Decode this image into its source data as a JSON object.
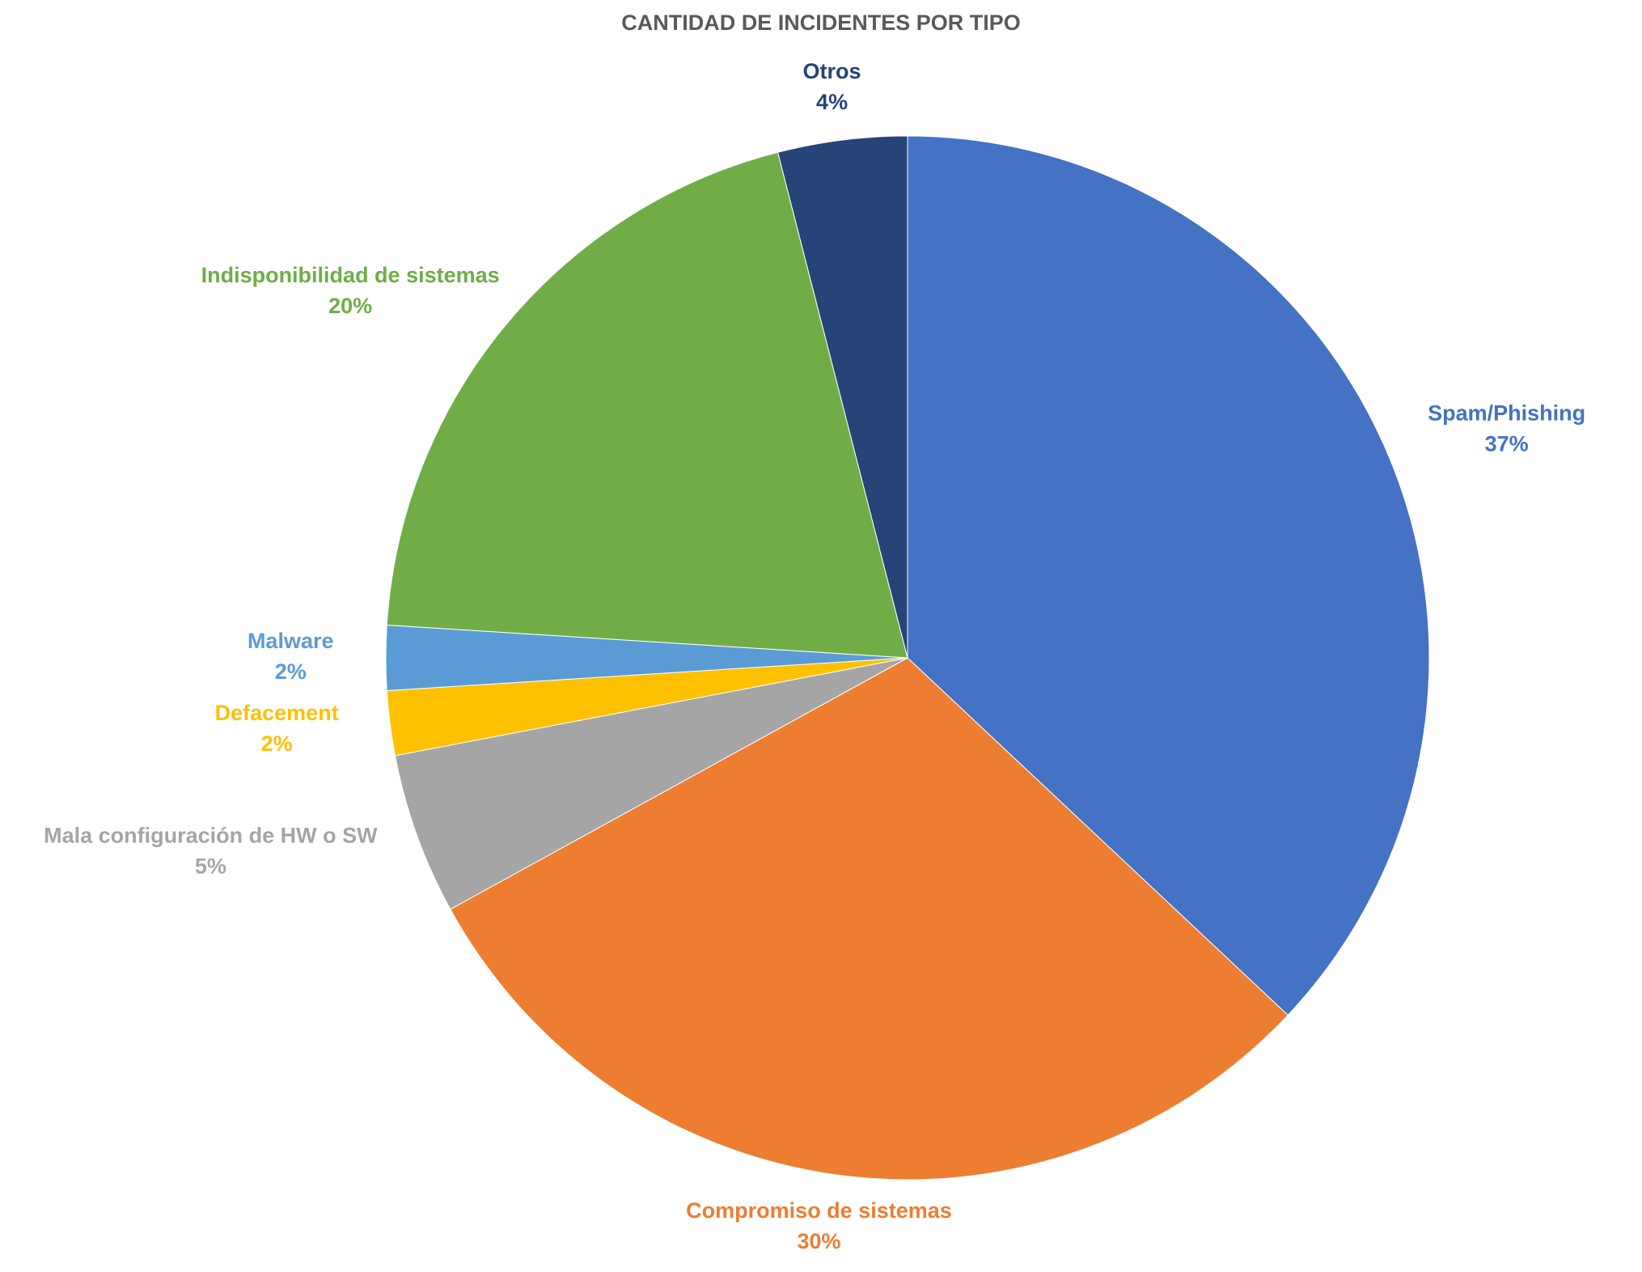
{
  "chart_data": {
    "type": "pie",
    "title": "CANTIDAD DE INCIDENTES POR TIPO",
    "categories": [
      "Spam/Phishing",
      "Compromiso de sistemas",
      "Mala configuración de HW o SW",
      "Defacement",
      "Malware",
      "Indisponibilidad de sistemas",
      "Otros"
    ],
    "values": [
      37,
      30,
      5,
      2,
      2,
      20,
      4
    ],
    "value_labels": [
      "37%",
      "30%",
      "5%",
      "2%",
      "2%",
      "20%",
      "4%"
    ],
    "colors": [
      "#4472c4",
      "#ed7d31",
      "#a5a5a5",
      "#ffc000",
      "#5b9bd5",
      "#70ad47",
      "#264478"
    ]
  }
}
